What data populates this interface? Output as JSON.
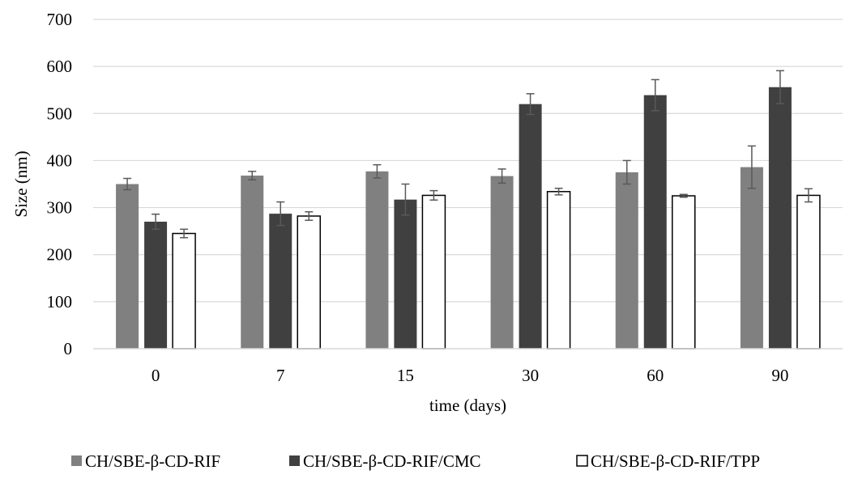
{
  "chart_data": {
    "type": "bar",
    "title": "",
    "xlabel": "time (days)",
    "ylabel": "Size (nm)",
    "ylim": [
      0,
      700
    ],
    "yticks": [
      0,
      100,
      200,
      300,
      400,
      500,
      600,
      700
    ],
    "grid": true,
    "legend_position": "bottom",
    "categories": [
      "0",
      "7",
      "15",
      "30",
      "60",
      "90"
    ],
    "series": [
      {
        "name": "CH/SBE-β-CD-RIF",
        "color": "#808080",
        "values": [
          350,
          368,
          377,
          367,
          375,
          386
        ],
        "error": [
          12,
          9,
          14,
          15,
          25,
          45
        ]
      },
      {
        "name": "CH/SBE-β-CD-RIF/CMC",
        "color": "#404040",
        "values": [
          270,
          287,
          317,
          520,
          539,
          556
        ],
        "error": [
          16,
          25,
          33,
          22,
          33,
          35
        ]
      },
      {
        "name": "CH/SBE-β-CD-RIF/TPP",
        "color": "#ffffff",
        "values": [
          245,
          282,
          326,
          334,
          325,
          326
        ],
        "error": [
          9,
          9,
          10,
          7,
          3,
          14
        ]
      }
    ]
  }
}
